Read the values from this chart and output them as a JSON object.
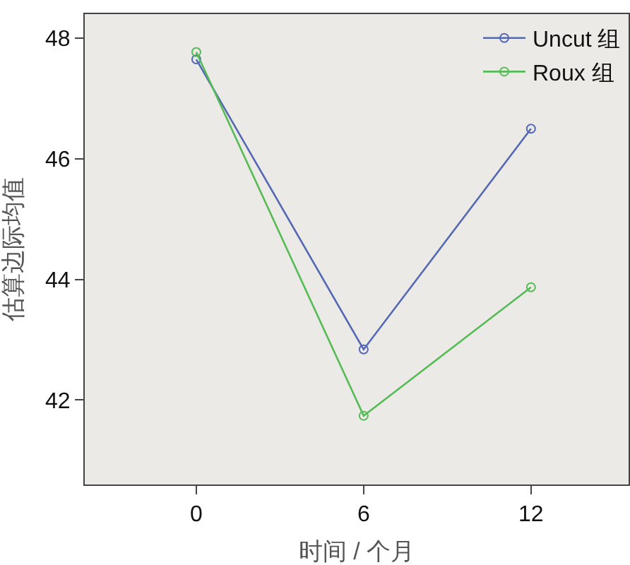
{
  "chart_data": {
    "type": "line",
    "xlabel": "时间 / 个月",
    "ylabel": "估算边际均值",
    "x": [
      0,
      6,
      12
    ],
    "series": [
      {
        "name": "Uncut 组",
        "color": "#5468b4",
        "values": [
          47.65,
          42.84,
          46.5
        ]
      },
      {
        "name": "Roux 组",
        "color": "#55bb55",
        "values": [
          47.77,
          41.74,
          43.87
        ]
      }
    ],
    "xlim": [
      -4,
      15.5
    ],
    "xticks": [
      0,
      6,
      12
    ],
    "ylim": [
      40.6,
      48.4
    ],
    "yticks": [
      42,
      44,
      46,
      48
    ],
    "grid": false,
    "legend": "top right",
    "marker": "circle",
    "line_style": "solid"
  }
}
